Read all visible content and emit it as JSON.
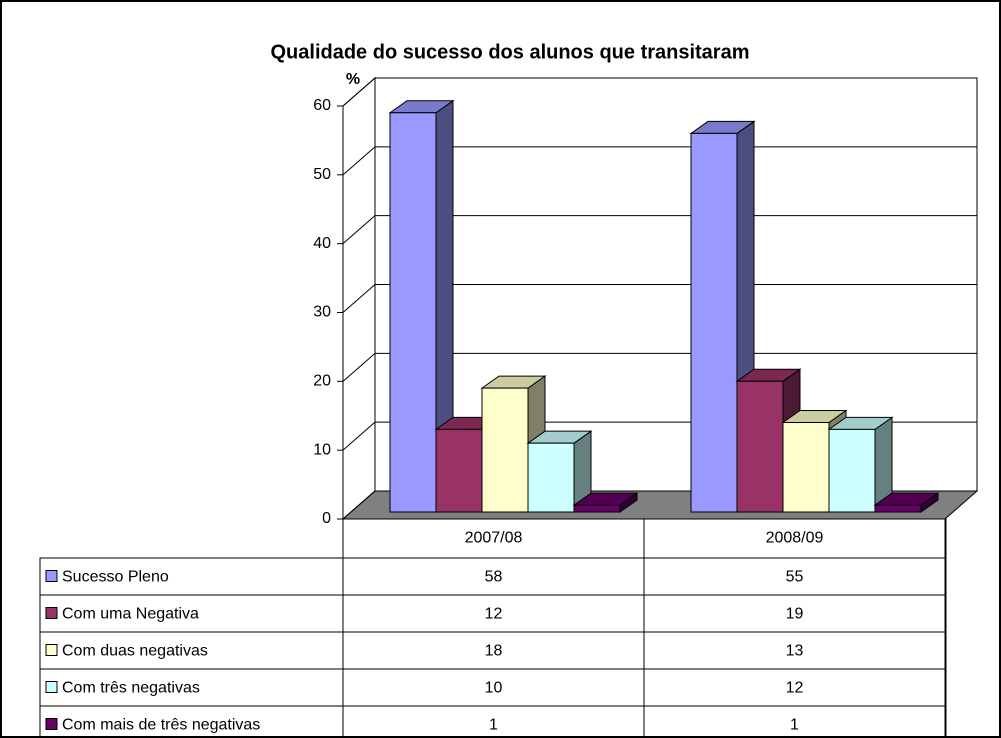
{
  "chart_data": {
    "type": "bar3d",
    "title": "Qualidade do sucesso dos alunos que transitaram",
    "y_label": "%",
    "categories": [
      "2007/08",
      "2008/09"
    ],
    "series": [
      {
        "name": "Sucesso Pleno",
        "color": "#9999ff",
        "values": [
          58,
          55
        ]
      },
      {
        "name": "Com uma Negativa",
        "color": "#993366",
        "values": [
          12,
          19
        ]
      },
      {
        "name": "Com duas negativas",
        "color": "#ffffcc",
        "values": [
          18,
          13
        ]
      },
      {
        "name": "Com três negativas",
        "color": "#ccffff",
        "values": [
          10,
          12
        ]
      },
      {
        "name": "Com mais de três negativas",
        "color": "#660066",
        "values": [
          1,
          1
        ]
      }
    ],
    "ylim": [
      0,
      60
    ],
    "yticks": [
      0,
      10,
      20,
      30,
      40,
      50,
      60
    ],
    "grid": true,
    "data_table": true
  }
}
